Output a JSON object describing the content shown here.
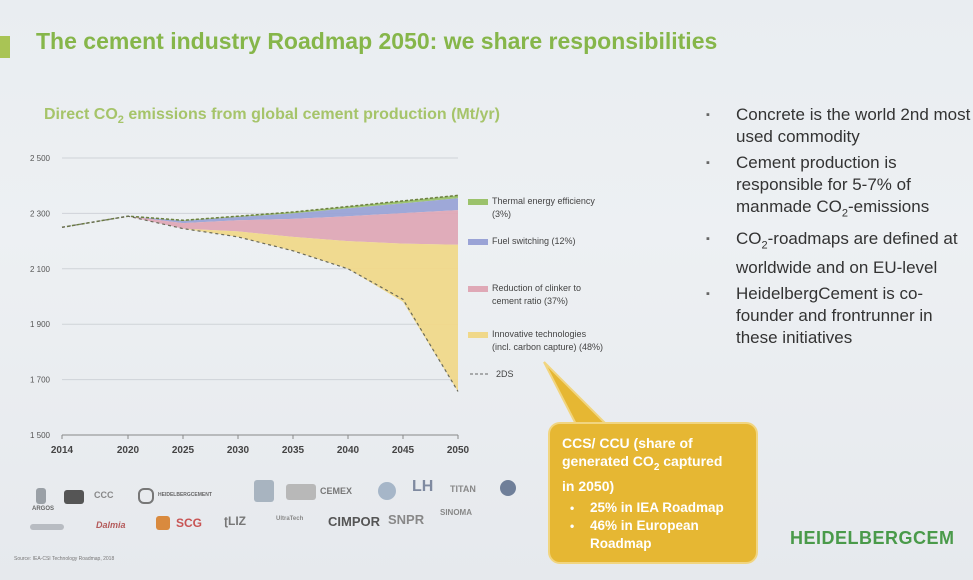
{
  "slide": {
    "title": "The cement industry Roadmap 2050: we share responsibilities",
    "chart_title_prefix": "Direct CO",
    "chart_title_sub": "2",
    "chart_title_suffix": " emissions from global cement production (Mt/yr)",
    "accent_color": "#86b64a"
  },
  "chart_data": {
    "type": "area",
    "x": [
      2014,
      2020,
      2025,
      2030,
      2035,
      2040,
      2045,
      2050
    ],
    "xlim": [
      2014,
      2050
    ],
    "ylim": [
      1500,
      2500
    ],
    "y_ticks": [
      1500,
      1700,
      1900,
      2100,
      2300,
      2500
    ],
    "y_tick_labels": [
      "1 500",
      "1 700",
      "1 900",
      "2 100",
      "2 300",
      "2 500"
    ],
    "x_tick_labels": [
      "2014",
      "2020",
      "2025",
      "2030",
      "2035",
      "2040",
      "2045",
      "2050"
    ],
    "baseline": [
      2250,
      2290,
      2275,
      2290,
      2305,
      2325,
      2345,
      2365
    ],
    "series": [
      {
        "name": "Thermal energy efficiency (3%)",
        "color": "#9bc26b",
        "values": [
          0,
          0,
          2,
          3,
          5,
          7,
          9,
          10
        ]
      },
      {
        "name": "Fuel switching (12%)",
        "color": "#9aa3d6",
        "values": [
          0,
          0,
          8,
          12,
          20,
          28,
          35,
          43
        ]
      },
      {
        "name": "Reduction of clinker to cement ratio (37%)",
        "color": "#dfa8b6",
        "values": [
          0,
          0,
          20,
          40,
          65,
          90,
          110,
          125
        ]
      },
      {
        "name": "Innovative technologies (incl. carbon capture) (48%)",
        "color": "#f0d88a",
        "values": [
          0,
          0,
          0,
          20,
          50,
          100,
          210,
          530
        ]
      }
    ],
    "dashed_series": {
      "name": "2DS",
      "values": [
        2250,
        2290,
        2245,
        2215,
        2165,
        2100,
        1990,
        1657
      ]
    },
    "legend_position": "right",
    "grid": true
  },
  "bullets": [
    {
      "text": "Concrete is the world 2nd most used commodity"
    },
    {
      "text_prefix": "Cement production is responsible for 5-7% of manmade CO",
      "sub": "2",
      "text_suffix": "-emissions"
    },
    {
      "text_prefix": "CO",
      "sub": "2",
      "text_suffix": "-roadmaps are defined at worldwide and on EU-level"
    },
    {
      "text": "HeidelbergCement is co-founder and frontrunner in these initiatives"
    }
  ],
  "callout": {
    "head_1": "CCS/ CCU (share of",
    "head_2_prefix": "generated CO",
    "head_2_sub": "2",
    "head_2_suffix": " captured",
    "head_3": "in 2050)",
    "items": [
      "25% in IEA Roadmap",
      "46% in European Roadmap"
    ],
    "color": "#e6b733"
  },
  "logos": [
    "ARGOS",
    "CCC",
    "HEIDELBERGCEMENT",
    "CEMEX",
    "LH",
    "TITAN",
    "Dalmia",
    "SCG",
    "UltraTech",
    "CIMPOR",
    "SNPR",
    "SINOMA"
  ],
  "source": "Source: IEA-CSI Technology Roadmap, 2018",
  "brand": "HEIDELBERGCEM"
}
